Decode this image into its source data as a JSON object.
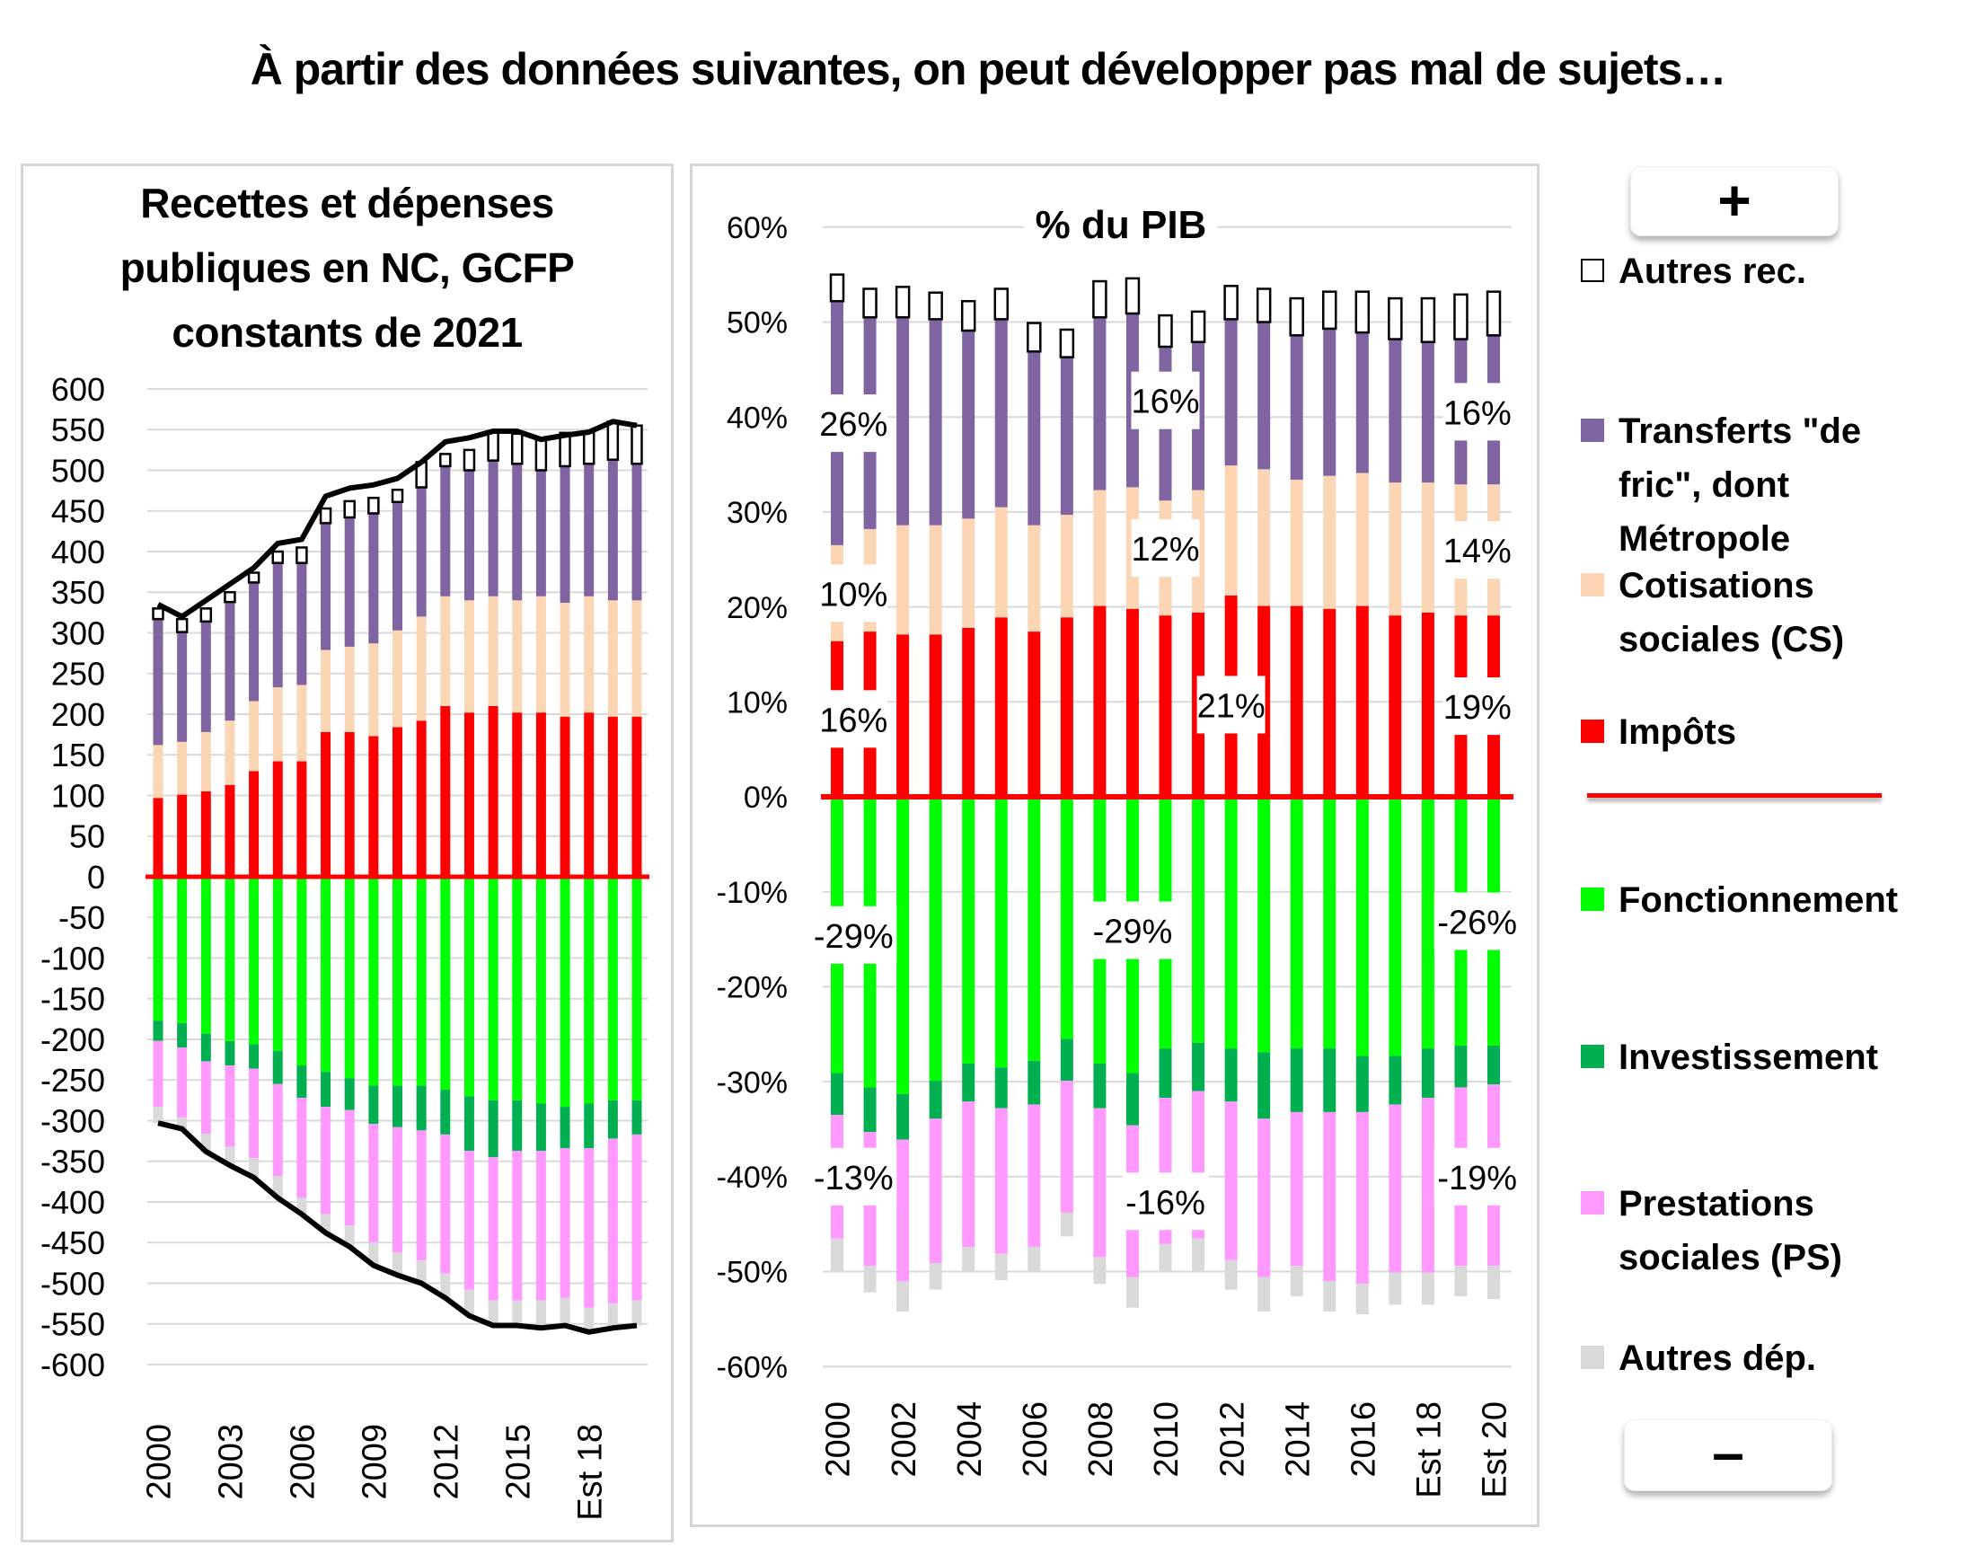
{
  "page": {
    "title": "À partir des données suivantes, on peut développer pas mal de sujets…"
  },
  "controls": {
    "plus_label": "+",
    "minus_label": "–"
  },
  "legend": {
    "items": [
      {
        "key": "autres_rec",
        "label": "Autres rec.",
        "color": "#ffffff",
        "outlined": true
      },
      {
        "key": "transferts",
        "label": "Transferts \"de\nfric\", dont\nMétropole",
        "color": "#8064a2"
      },
      {
        "key": "cotisations",
        "label": "Cotisations\nsociales (CS)",
        "color": "#fcd5b5"
      },
      {
        "key": "impots",
        "label": "Impôts",
        "color": "#ff0000"
      },
      {
        "key": "fonctionnement",
        "label": "Fonctionnement",
        "color": "#00ff00"
      },
      {
        "key": "investissement",
        "label": "Investissement",
        "color": "#00b050"
      },
      {
        "key": "prestations",
        "label": "Prestations\nsociales (PS)",
        "color": "#ff99ff"
      },
      {
        "key": "autres_dep",
        "label": "Autres dép.",
        "color": "#d9d9d9"
      }
    ]
  },
  "chart_data": [
    {
      "type": "bar",
      "stacked": true,
      "title": "Recettes et dépenses publiques en NC, GCFP constants de 2021",
      "title_lines": [
        "Recettes et dépenses",
        "publiques en NC, GCFP",
        "constants de 2021"
      ],
      "xlabel": "",
      "ylabel": "",
      "ylim": [
        -600,
        600
      ],
      "yticks": [
        600,
        550,
        500,
        450,
        400,
        350,
        300,
        250,
        200,
        150,
        100,
        50,
        0,
        -50,
        -100,
        -150,
        -200,
        -250,
        -300,
        -350,
        -400,
        -450,
        -500,
        -550,
        -600
      ],
      "ytick_labels": [
        "600",
        "550",
        "500",
        "450",
        "400",
        "350",
        "300",
        "250",
        "200",
        "150",
        "100",
        "50",
        "0",
        "-50",
        "-100",
        "-150",
        "-200",
        "-250",
        "-300",
        "-350",
        "-400",
        "-450",
        "-500",
        "-550",
        "-600"
      ],
      "grid": true,
      "categories": [
        "2000",
        "2001",
        "2002",
        "2003",
        "2004",
        "2005",
        "2006",
        "2007",
        "2008",
        "2009",
        "2010",
        "2011",
        "2012",
        "2013",
        "2014",
        "2015",
        "2016",
        "2017",
        "2018",
        "2019",
        "2020"
      ],
      "xtick_labels": [
        {
          "index": 0,
          "label": "2000"
        },
        {
          "index": 3,
          "label": "2003"
        },
        {
          "index": 6,
          "label": "2006"
        },
        {
          "index": 9,
          "label": "2009"
        },
        {
          "index": 12,
          "label": "2012"
        },
        {
          "index": 15,
          "label": "2015"
        },
        {
          "index": 18,
          "label": "Est 18"
        }
      ],
      "series": [
        {
          "name": "Impôts",
          "key": "impots",
          "values": [
            97,
            101,
            105,
            113,
            130,
            142,
            142,
            178,
            178,
            173,
            184,
            192,
            210,
            202,
            210,
            202,
            202,
            197,
            202,
            197,
            197
          ]
        },
        {
          "name": "Cotisations sociales (CS)",
          "key": "cotisations",
          "values": [
            65,
            65,
            73,
            79,
            86,
            91,
            94,
            101,
            105,
            114,
            119,
            128,
            135,
            138,
            135,
            138,
            143,
            140,
            143,
            143,
            143
          ]
        },
        {
          "name": "Transferts \"de fric\", dont Métropole",
          "key": "transferts",
          "values": [
            155,
            135,
            136,
            146,
            146,
            153,
            150,
            156,
            159,
            160,
            158,
            159,
            160,
            160,
            167,
            168,
            155,
            168,
            163,
            173,
            168
          ]
        },
        {
          "name": "Autres rec.",
          "key": "autres_rec",
          "values": [
            13,
            16,
            16,
            12,
            12,
            14,
            19,
            18,
            20,
            19,
            15,
            31,
            15,
            25,
            36,
            37,
            40,
            41,
            39,
            47,
            47
          ]
        },
        {
          "name": "Fonctionnement",
          "key": "fonctionnement",
          "values": [
            -177,
            -180,
            -193,
            -202,
            -206,
            -214,
            -232,
            -240,
            -248,
            -257,
            -257,
            -257,
            -262,
            -270,
            -275,
            -275,
            -279,
            -283,
            -279,
            -275,
            -275
          ]
        },
        {
          "name": "Investissement",
          "key": "investissement",
          "values": [
            -25,
            -30,
            -34,
            -30,
            -30,
            -41,
            -40,
            -43,
            -39,
            -47,
            -51,
            -55,
            -55,
            -67,
            -70,
            -62,
            -58,
            -51,
            -55,
            -47,
            -42
          ]
        },
        {
          "name": "Prestations sociales (PS)",
          "key": "prestations",
          "values": [
            -81,
            -86,
            -89,
            -100,
            -110,
            -113,
            -123,
            -132,
            -142,
            -146,
            -154,
            -160,
            -171,
            -171,
            -176,
            -184,
            -184,
            -184,
            -196,
            -203,
            -204
          ]
        },
        {
          "name": "Autres dép.",
          "key": "autres_dep",
          "values": [
            -20,
            -14,
            -22,
            -23,
            -24,
            -27,
            -20,
            -23,
            -26,
            -28,
            -28,
            -28,
            -30,
            -32,
            -31,
            -31,
            -34,
            -34,
            -30,
            -30,
            -31
          ]
        }
      ],
      "lines": [
        {
          "name": "Total recettes",
          "values": [
            335,
            320,
            340,
            360,
            380,
            410,
            415,
            468,
            478,
            482,
            490,
            510,
            535,
            540,
            548,
            548,
            538,
            543,
            547,
            560,
            555
          ]
        },
        {
          "name": "Total dépenses",
          "values": [
            -303,
            -310,
            -338,
            -355,
            -370,
            -395,
            -415,
            -438,
            -455,
            -478,
            -490,
            -500,
            -518,
            -540,
            -552,
            -552,
            -555,
            -552,
            -560,
            -555,
            -552
          ]
        }
      ]
    },
    {
      "type": "bar",
      "stacked": true,
      "title": "% du PIB",
      "xlabel": "",
      "ylabel": "",
      "ylim": [
        -60,
        60
      ],
      "yticks": [
        60,
        50,
        40,
        30,
        20,
        10,
        0,
        -10,
        -20,
        -30,
        -40,
        -50,
        -60
      ],
      "ytick_labels": [
        "60%",
        "50%",
        "40%",
        "30%",
        "20%",
        "10%",
        "0%",
        "-10%",
        "-20%",
        "-30%",
        "-40%",
        "-50%",
        "-60%"
      ],
      "grid": true,
      "categories": [
        "2000",
        "2001",
        "2002",
        "2003",
        "2004",
        "2005",
        "2006",
        "2007",
        "2008",
        "2009",
        "2010",
        "2011",
        "2012",
        "2013",
        "2014",
        "2015",
        "2016",
        "2017",
        "2018",
        "2019",
        "2020"
      ],
      "xtick_labels": [
        {
          "index": 0,
          "label": "2000"
        },
        {
          "index": 2,
          "label": "2002"
        },
        {
          "index": 4,
          "label": "2004"
        },
        {
          "index": 6,
          "label": "2006"
        },
        {
          "index": 8,
          "label": "2008"
        },
        {
          "index": 10,
          "label": "2010"
        },
        {
          "index": 12,
          "label": "2012"
        },
        {
          "index": 14,
          "label": "2014"
        },
        {
          "index": 16,
          "label": "2016"
        },
        {
          "index": 18,
          "label": "Est 18"
        },
        {
          "index": 20,
          "label": "Est 20"
        }
      ],
      "series": [
        {
          "name": "Impôts",
          "key": "impots",
          "values": [
            16.4,
            17.4,
            17.1,
            17.1,
            17.8,
            18.9,
            17.4,
            18.9,
            20.1,
            19.8,
            19.1,
            19.4,
            21.2,
            20.1,
            20.1,
            19.8,
            20.1,
            19.1,
            19.4,
            19.1,
            19.1
          ]
        },
        {
          "name": "Cotisations sociales (CS)",
          "key": "cotisations",
          "values": [
            10.1,
            10.8,
            11.5,
            11.5,
            11.5,
            11.6,
            11.2,
            10.8,
            12.2,
            12.8,
            12.1,
            12.9,
            13.7,
            14.4,
            13.3,
            14.0,
            14.0,
            14.0,
            13.7,
            13.8,
            13.8
          ]
        },
        {
          "name": "Transferts \"de fric\", dont Métropole",
          "key": "transferts",
          "values": [
            25.7,
            22.3,
            21.9,
            21.7,
            19.8,
            19.8,
            18.3,
            16.6,
            18.2,
            18.3,
            16.2,
            15.6,
            15.4,
            15.5,
            15.2,
            15.5,
            14.8,
            15.1,
            14.8,
            15.3,
            15.7
          ]
        },
        {
          "name": "Autres rec.",
          "key": "autres_rec",
          "values": [
            2.8,
            3.0,
            3.2,
            2.8,
            3.1,
            3.2,
            3.0,
            2.9,
            3.8,
            3.7,
            3.3,
            3.2,
            3.5,
            3.5,
            3.9,
            3.9,
            4.3,
            4.3,
            4.6,
            4.7,
            4.6
          ]
        },
        {
          "name": "Fonctionnement",
          "key": "fonctionnement",
          "values": [
            -29.1,
            -30.6,
            -31.3,
            -29.9,
            -28.1,
            -28.5,
            -27.8,
            -25.5,
            -28.1,
            -29.1,
            -26.5,
            -25.9,
            -26.5,
            -26.9,
            -26.5,
            -26.5,
            -27.3,
            -27.3,
            -26.5,
            -26.2,
            -26.2
          ]
        },
        {
          "name": "Investissement",
          "key": "investissement",
          "values": [
            -4.4,
            -4.7,
            -4.8,
            -4.0,
            -4.0,
            -4.3,
            -4.6,
            -4.4,
            -4.7,
            -5.5,
            -5.2,
            -5.1,
            -5.6,
            -7.0,
            -6.7,
            -6.7,
            -5.9,
            -5.1,
            -5.2,
            -4.4,
            -4.1
          ]
        },
        {
          "name": "Prestations sociales (PS)",
          "key": "prestations",
          "values": [
            -13.0,
            -14.1,
            -14.9,
            -15.2,
            -15.3,
            -15.3,
            -15.0,
            -13.9,
            -15.7,
            -16.0,
            -15.4,
            -15.5,
            -16.7,
            -16.7,
            -16.2,
            -17.8,
            -18.1,
            -17.7,
            -18.4,
            -18.8,
            -19.1
          ]
        },
        {
          "name": "Autres dép.",
          "key": "autres_dep",
          "values": [
            -3.4,
            -2.8,
            -3.2,
            -2.8,
            -2.5,
            -2.8,
            -2.5,
            -2.5,
            -2.8,
            -3.2,
            -3.0,
            -3.4,
            -3.1,
            -3.6,
            -3.2,
            -3.2,
            -3.2,
            -3.4,
            -3.4,
            -3.2,
            -3.5
          ]
        }
      ],
      "annotations": [
        {
          "text": "26%",
          "series": "transferts",
          "years": [
            "2000",
            "2001"
          ]
        },
        {
          "text": "16%",
          "series": "transferts",
          "years": [
            "2009",
            "2010",
            "2011"
          ]
        },
        {
          "text": "16%",
          "series": "transferts",
          "years": [
            "2019",
            "2020"
          ]
        },
        {
          "text": "10%",
          "series": "cotisations",
          "years": [
            "2000",
            "2001"
          ]
        },
        {
          "text": "12%",
          "series": "cotisations",
          "years": [
            "2009",
            "2010",
            "2011"
          ]
        },
        {
          "text": "14%",
          "series": "cotisations",
          "years": [
            "2019",
            "2020"
          ]
        },
        {
          "text": "16%",
          "series": "impots",
          "years": [
            "2000",
            "2001"
          ]
        },
        {
          "text": "21%",
          "series": "impots",
          "years": [
            "2011",
            "2012",
            "2013"
          ]
        },
        {
          "text": "19%",
          "series": "impots",
          "years": [
            "2019",
            "2020"
          ]
        },
        {
          "text": "-29%",
          "series": "fonctionnement",
          "years": [
            "2000",
            "2001"
          ]
        },
        {
          "text": "-29%",
          "series": "fonctionnement",
          "years": [
            "2008",
            "2009",
            "2010"
          ]
        },
        {
          "text": "-26%",
          "series": "fonctionnement",
          "years": [
            "2019",
            "2020"
          ]
        },
        {
          "text": "-13%",
          "series": "prestations",
          "years": [
            "2000",
            "2001"
          ]
        },
        {
          "text": "-16%",
          "series": "prestations",
          "years": [
            "2009",
            "2010",
            "2011"
          ]
        },
        {
          "text": "-19%",
          "series": "prestations",
          "years": [
            "2019",
            "2020"
          ]
        }
      ]
    }
  ]
}
